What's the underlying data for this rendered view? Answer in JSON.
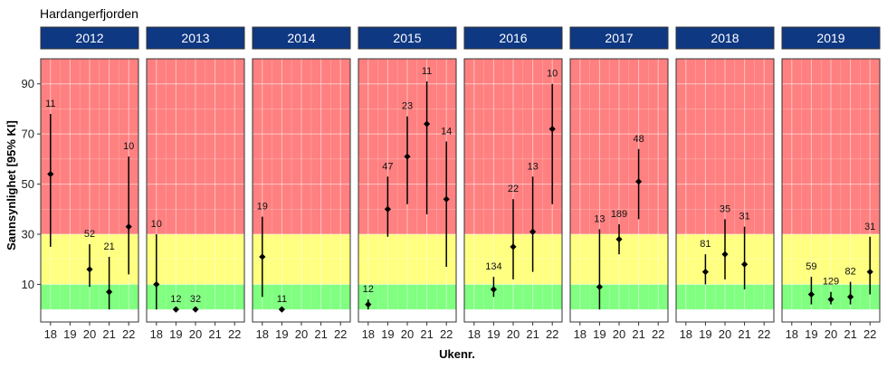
{
  "chart_data": {
    "type": "scatter",
    "title": "Hardangerfjorden",
    "xlabel": "Ukenr.",
    "ylabel": "Sannsynlighet [95% KI]",
    "x_ticks": [
      18,
      19,
      20,
      21,
      22
    ],
    "y_ticks": [
      10,
      30,
      50,
      70,
      90
    ],
    "xlim": [
      17.5,
      22.5
    ],
    "ylim": [
      -5,
      100
    ],
    "bands": [
      {
        "from": 0,
        "to": 10,
        "color": "#80ff80"
      },
      {
        "from": 10,
        "to": 30,
        "color": "#ffff80"
      },
      {
        "from": 30,
        "to": 100,
        "color": "#ff8080"
      }
    ],
    "colors": {
      "strip": "#0f3883",
      "strip_text": "#ffffff",
      "point": "#000000"
    },
    "panels": [
      {
        "year": "2012",
        "points": [
          {
            "week": 18,
            "value": 54,
            "low": 25,
            "high": 78,
            "n": "11"
          },
          {
            "week": 20,
            "value": 16,
            "low": 9,
            "high": 26,
            "n": "52"
          },
          {
            "week": 21,
            "value": 7,
            "low": 0,
            "high": 21,
            "n": "21"
          },
          {
            "week": 22,
            "value": 33,
            "low": 14,
            "high": 61,
            "n": "10"
          }
        ]
      },
      {
        "year": "2013",
        "points": [
          {
            "week": 18,
            "value": 10,
            "low": 0,
            "high": 30,
            "n": "10"
          },
          {
            "week": 19,
            "value": 0,
            "low": 0,
            "high": 0,
            "n": "12"
          },
          {
            "week": 20,
            "value": 0,
            "low": 0,
            "high": 0,
            "n": "32"
          }
        ]
      },
      {
        "year": "2014",
        "points": [
          {
            "week": 18,
            "value": 21,
            "low": 5,
            "high": 37,
            "n": "19"
          },
          {
            "week": 19,
            "value": 0,
            "low": 0,
            "high": 0,
            "n": "11"
          }
        ]
      },
      {
        "year": "2015",
        "points": [
          {
            "week": 18,
            "value": 2,
            "low": 0,
            "high": 4,
            "n": "12"
          },
          {
            "week": 19,
            "value": 40,
            "low": 29,
            "high": 53,
            "n": "47"
          },
          {
            "week": 20,
            "value": 61,
            "low": 42,
            "high": 77,
            "n": "23"
          },
          {
            "week": 21,
            "value": 74,
            "low": 38,
            "high": 91,
            "n": "11"
          },
          {
            "week": 22,
            "value": 44,
            "low": 17,
            "high": 67,
            "n": "14"
          }
        ]
      },
      {
        "year": "2016",
        "points": [
          {
            "week": 19,
            "value": 8,
            "low": 5,
            "high": 13,
            "n": "134"
          },
          {
            "week": 20,
            "value": 25,
            "low": 12,
            "high": 44,
            "n": "22"
          },
          {
            "week": 21,
            "value": 31,
            "low": 15,
            "high": 53,
            "n": "13"
          },
          {
            "week": 22,
            "value": 72,
            "low": 42,
            "high": 90,
            "n": "10"
          }
        ]
      },
      {
        "year": "2017",
        "points": [
          {
            "week": 19,
            "value": 9,
            "low": 0,
            "high": 32,
            "n": "13"
          },
          {
            "week": 20,
            "value": 28,
            "low": 22,
            "high": 34,
            "n": "189"
          },
          {
            "week": 21,
            "value": 51,
            "low": 36,
            "high": 64,
            "n": "48"
          }
        ]
      },
      {
        "year": "2018",
        "points": [
          {
            "week": 19,
            "value": 15,
            "low": 10,
            "high": 22,
            "n": "81"
          },
          {
            "week": 20,
            "value": 22,
            "low": 12,
            "high": 36,
            "n": "35"
          },
          {
            "week": 21,
            "value": 18,
            "low": 8,
            "high": 33,
            "n": "31"
          }
        ]
      },
      {
        "year": "2019",
        "points": [
          {
            "week": 19,
            "value": 6,
            "low": 2,
            "high": 13,
            "n": "59"
          },
          {
            "week": 20,
            "value": 4,
            "low": 2,
            "high": 7,
            "n": "129"
          },
          {
            "week": 21,
            "value": 5,
            "low": 2,
            "high": 11,
            "n": "82"
          },
          {
            "week": 22,
            "value": 15,
            "low": 6,
            "high": 29,
            "n": "31"
          }
        ]
      }
    ]
  }
}
